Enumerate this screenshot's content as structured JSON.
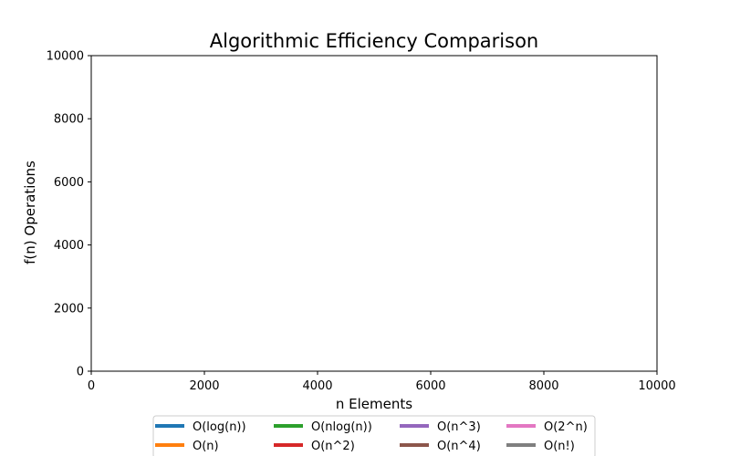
{
  "chart_data": {
    "type": "line",
    "title": "Algorithmic Efficiency Comparison",
    "xlabel": "n Elements",
    "ylabel": "f(n) Operations",
    "xlim": [
      0,
      10000
    ],
    "ylim": [
      0,
      10000
    ],
    "xticks": [
      0,
      2000,
      4000,
      6000,
      8000,
      10000
    ],
    "yticks": [
      0,
      2000,
      4000,
      6000,
      8000,
      10000
    ],
    "grid": false,
    "legend_position": "bottom-center",
    "series": [
      {
        "name": "O(log(n))",
        "color": "#1f77b4"
      },
      {
        "name": "O(n)",
        "color": "#ff7f0e"
      },
      {
        "name": "O(nlog(n))",
        "color": "#2ca02c"
      },
      {
        "name": "O(n^2)",
        "color": "#d62728"
      },
      {
        "name": "O(n^3)",
        "color": "#9467bd"
      },
      {
        "name": "O(n^4)",
        "color": "#8c564b"
      },
      {
        "name": "O(2^n)",
        "color": "#e377c2"
      },
      {
        "name": "O(n!)",
        "color": "#7f7f7f"
      }
    ]
  }
}
